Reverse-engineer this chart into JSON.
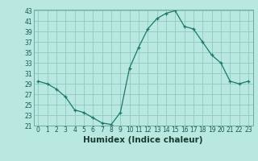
{
  "x": [
    0,
    1,
    2,
    3,
    4,
    5,
    6,
    7,
    8,
    9,
    10,
    11,
    12,
    13,
    14,
    15,
    16,
    17,
    18,
    19,
    20,
    21,
    22,
    23
  ],
  "y": [
    29.5,
    29,
    28,
    26.5,
    24,
    23.5,
    22.5,
    21.5,
    21.2,
    23.5,
    32,
    36,
    39.5,
    41.5,
    42.5,
    43,
    40,
    39.5,
    37,
    34.5,
    33,
    29.5,
    29,
    29.5
  ],
  "line_color": "#1a7a6a",
  "marker": "+",
  "bg_color": "#b8e8e0",
  "grid_color": "#90c8c0",
  "xlabel": "Humidex (Indice chaleur)",
  "ylim": [
    21,
    43
  ],
  "xlim": [
    -0.5,
    23.5
  ],
  "yticks": [
    21,
    23,
    25,
    27,
    29,
    31,
    33,
    35,
    37,
    39,
    41,
    43
  ],
  "xticks": [
    0,
    1,
    2,
    3,
    4,
    5,
    6,
    7,
    8,
    9,
    10,
    11,
    12,
    13,
    14,
    15,
    16,
    17,
    18,
    19,
    20,
    21,
    22,
    23
  ],
  "tick_fontsize": 5.5,
  "xlabel_fontsize": 7.5
}
